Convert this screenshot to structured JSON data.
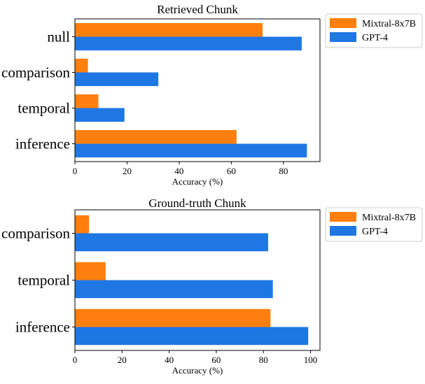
{
  "chart_data": [
    {
      "type": "bar",
      "orientation": "horizontal",
      "title": "Retrieved Chunk",
      "xlabel": "Accuracy (%)",
      "ylabel": "",
      "categories": [
        "null",
        "comparison",
        "temporal",
        "inference"
      ],
      "series": [
        {
          "name": "Mixtral-8x7B",
          "color": "#ff7f0e",
          "values": [
            72,
            5,
            9,
            62
          ]
        },
        {
          "name": "GPT-4",
          "color": "#1f77e4",
          "values": [
            87,
            32,
            19,
            89
          ]
        }
      ],
      "xlim": [
        0,
        94
      ],
      "xticks": [
        0,
        20,
        40,
        60,
        80
      ],
      "legend": "outside-top-right",
      "grid": false
    },
    {
      "type": "bar",
      "orientation": "horizontal",
      "title": "Ground-truth Chunk",
      "xlabel": "Accuracy (%)",
      "ylabel": "",
      "categories": [
        "comparison",
        "temporal",
        "inference"
      ],
      "series": [
        {
          "name": "Mixtral-8x7B",
          "color": "#ff7f0e",
          "values": [
            6,
            13,
            83
          ]
        },
        {
          "name": "GPT-4",
          "color": "#1f77e4",
          "values": [
            82,
            84,
            99
          ]
        }
      ],
      "xlim": [
        0,
        104
      ],
      "xticks": [
        0,
        20,
        40,
        60,
        80,
        100
      ],
      "legend": "outside-top-right",
      "grid": false
    }
  ]
}
